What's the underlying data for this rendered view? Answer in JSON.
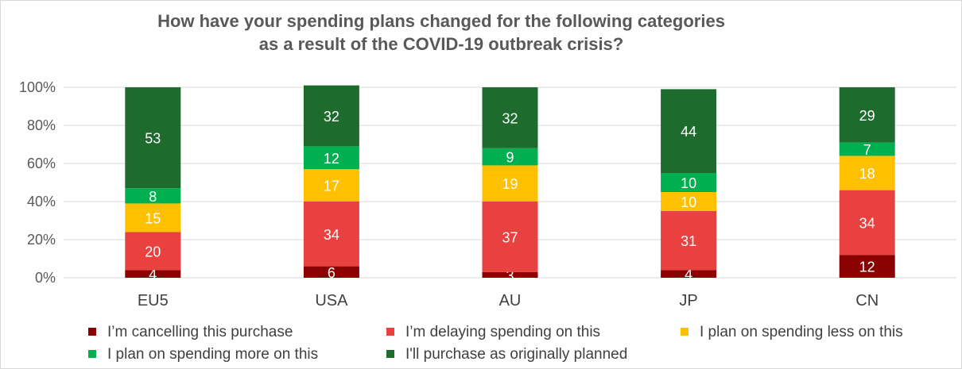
{
  "chart_data": {
    "type": "bar",
    "stacked": true,
    "title_line1": "How have your spending plans changed for the following categories",
    "title_line2": "as a result of the COVID-19 outbreak crisis?",
    "categories": [
      "EU5",
      "USA",
      "AU",
      "JP",
      "CN"
    ],
    "ylim": [
      0,
      100
    ],
    "yticks": [
      "0%",
      "20%",
      "40%",
      "60%",
      "80%",
      "100%"
    ],
    "legend_position": "bottom",
    "series": [
      {
        "name": "I’m cancelling this purchase",
        "color": "#8b0000",
        "values": [
          4,
          6,
          3,
          4,
          12
        ]
      },
      {
        "name": "I’m delaying spending on this",
        "color": "#e8413f",
        "values": [
          20,
          34,
          37,
          31,
          34
        ]
      },
      {
        "name": "I plan on spending less on this",
        "color": "#ffc000",
        "values": [
          15,
          17,
          19,
          10,
          18
        ]
      },
      {
        "name": "I plan on spending more on this",
        "color": "#00b050",
        "values": [
          8,
          12,
          9,
          10,
          7
        ]
      },
      {
        "name": "I'll purchase as originally planned",
        "color": "#1e6b2e",
        "values": [
          53,
          32,
          32,
          44,
          29
        ]
      }
    ]
  }
}
